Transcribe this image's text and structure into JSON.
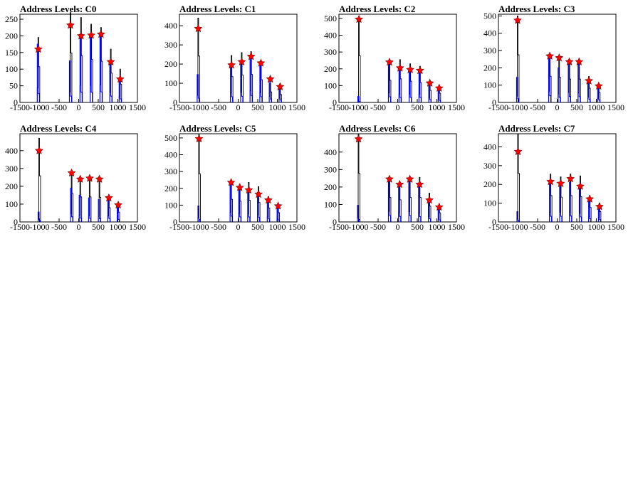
{
  "colors": {
    "background": "#ffffff",
    "frame": "#000000",
    "hist_black": "#000000",
    "hist_blue": "#0000ff",
    "marker": "#ff0000"
  },
  "chart_data": [
    {
      "type": "bar",
      "title": "Address Levels: C0",
      "xlim": [
        -1500,
        1500
      ],
      "ylim": [
        0,
        265
      ],
      "xticks": [
        -1500,
        -1000,
        -500,
        0,
        500,
        1000,
        1500
      ],
      "yticks": [
        0,
        50,
        100,
        150,
        200,
        250
      ],
      "peaks": [
        -1030,
        -210,
        60,
        320,
        570,
        820,
        1060
      ],
      "black": [
        195,
        270,
        255,
        235,
        225,
        160,
        100
      ],
      "blue": [
        175,
        125,
        205,
        205,
        210,
        125,
        70
      ],
      "markers": [
        {
          "x": -1030,
          "y": 160
        },
        {
          "x": -210,
          "y": 232
        },
        {
          "x": 60,
          "y": 200
        },
        {
          "x": 320,
          "y": 202
        },
        {
          "x": 570,
          "y": 205
        },
        {
          "x": 820,
          "y": 122
        },
        {
          "x": 1060,
          "y": 70
        }
      ]
    },
    {
      "type": "bar",
      "title": "Address Levels: C1",
      "xlim": [
        -1500,
        1500
      ],
      "ylim": [
        0,
        460
      ],
      "xticks": [
        -1500,
        -1000,
        -500,
        0,
        500,
        1000,
        1500
      ],
      "yticks": [
        0,
        100,
        200,
        300,
        400
      ],
      "peaks": [
        -1020,
        -170,
        90,
        330,
        580,
        820,
        1070
      ],
      "black": [
        440,
        245,
        260,
        265,
        215,
        100,
        75
      ],
      "blue": [
        145,
        200,
        210,
        240,
        200,
        120,
        85
      ],
      "markers": [
        {
          "x": -1020,
          "y": 385
        },
        {
          "x": -170,
          "y": 195
        },
        {
          "x": 90,
          "y": 212
        },
        {
          "x": 330,
          "y": 240
        },
        {
          "x": 580,
          "y": 205
        },
        {
          "x": 820,
          "y": 122
        },
        {
          "x": 1070,
          "y": 82
        }
      ]
    },
    {
      "type": "bar",
      "title": "Address Levels: C2",
      "xlim": [
        -1500,
        1500
      ],
      "ylim": [
        0,
        525
      ],
      "xticks": [
        -1500,
        -1000,
        -500,
        0,
        500,
        1000,
        1500
      ],
      "yticks": [
        0,
        100,
        200,
        300,
        400,
        500
      ],
      "peaks": [
        -990,
        -210,
        60,
        320,
        570,
        820,
        1060
      ],
      "black": [
        505,
        240,
        255,
        230,
        215,
        130,
        100
      ],
      "blue": [
        35,
        225,
        195,
        200,
        195,
        115,
        85
      ],
      "markers": [
        {
          "x": -990,
          "y": 495
        },
        {
          "x": -210,
          "y": 240
        },
        {
          "x": 60,
          "y": 205
        },
        {
          "x": 320,
          "y": 195
        },
        {
          "x": 570,
          "y": 190
        },
        {
          "x": 820,
          "y": 115
        },
        {
          "x": 1060,
          "y": 85
        }
      ]
    },
    {
      "type": "bar",
      "title": "Address Levels: C3",
      "xlim": [
        -1500,
        1500
      ],
      "ylim": [
        0,
        510
      ],
      "xticks": [
        -1500,
        -1000,
        -500,
        0,
        500,
        1000,
        1500
      ],
      "yticks": [
        0,
        100,
        200,
        300,
        400,
        500
      ],
      "peaks": [
        -1010,
        -190,
        50,
        310,
        560,
        810,
        1060
      ],
      "black": [
        500,
        275,
        265,
        245,
        245,
        150,
        105
      ],
      "blue": [
        145,
        260,
        200,
        230,
        220,
        125,
        95
      ],
      "markers": [
        {
          "x": -1010,
          "y": 475
        },
        {
          "x": -190,
          "y": 268
        },
        {
          "x": 50,
          "y": 258
        },
        {
          "x": 310,
          "y": 235
        },
        {
          "x": 560,
          "y": 235
        },
        {
          "x": 810,
          "y": 125
        },
        {
          "x": 1060,
          "y": 95
        }
      ]
    },
    {
      "type": "bar",
      "title": "Address Levels: C4",
      "xlim": [
        -1500,
        1500
      ],
      "ylim": [
        0,
        495
      ],
      "xticks": [
        -1500,
        -1000,
        -500,
        0,
        500,
        1000,
        1500
      ],
      "yticks": [
        0,
        100,
        200,
        300,
        400
      ],
      "peaks": [
        -1010,
        -180,
        40,
        280,
        530,
        770,
        1010
      ],
      "black": [
        470,
        290,
        255,
        255,
        250,
        145,
        100
      ],
      "blue": [
        55,
        190,
        150,
        135,
        125,
        135,
        95
      ],
      "markers": [
        {
          "x": -1010,
          "y": 400
        },
        {
          "x": -180,
          "y": 275
        },
        {
          "x": 40,
          "y": 240
        },
        {
          "x": 280,
          "y": 245
        },
        {
          "x": 530,
          "y": 240
        },
        {
          "x": 770,
          "y": 135
        },
        {
          "x": 1010,
          "y": 95
        }
      ]
    },
    {
      "type": "bar",
      "title": "Address Levels: C5",
      "xlim": [
        -1500,
        1500
      ],
      "ylim": [
        0,
        525
      ],
      "xticks": [
        -1500,
        -1000,
        -500,
        0,
        500,
        1000,
        1500
      ],
      "yticks": [
        0,
        100,
        200,
        300,
        400,
        500
      ],
      "peaks": [
        -1000,
        -180,
        40,
        270,
        520,
        770,
        1020
      ],
      "black": [
        520,
        245,
        225,
        235,
        210,
        150,
        100
      ],
      "blue": [
        95,
        230,
        200,
        195,
        175,
        120,
        80
      ],
      "markers": [
        {
          "x": -1000,
          "y": 495
        },
        {
          "x": -180,
          "y": 235
        },
        {
          "x": 40,
          "y": 205
        },
        {
          "x": 270,
          "y": 190
        },
        {
          "x": 520,
          "y": 165
        },
        {
          "x": 770,
          "y": 130
        },
        {
          "x": 1020,
          "y": 95
        }
      ]
    },
    {
      "type": "bar",
      "title": "Address Levels: C6",
      "xlim": [
        -1500,
        1500
      ],
      "ylim": [
        0,
        505
      ],
      "xticks": [
        -1500,
        -1000,
        -500,
        0,
        500,
        1000,
        1500
      ],
      "yticks": [
        0,
        100,
        200,
        300,
        400
      ],
      "peaks": [
        -1000,
        -210,
        50,
        310,
        560,
        810,
        1060
      ],
      "black": [
        505,
        255,
        230,
        255,
        255,
        165,
        95
      ],
      "blue": [
        95,
        240,
        210,
        235,
        200,
        120,
        80
      ],
      "markers": [
        {
          "x": -1000,
          "y": 475
        },
        {
          "x": -210,
          "y": 245
        },
        {
          "x": 50,
          "y": 215
        },
        {
          "x": 310,
          "y": 245
        },
        {
          "x": 560,
          "y": 215
        },
        {
          "x": 810,
          "y": 125
        },
        {
          "x": 1060,
          "y": 85
        }
      ]
    },
    {
      "type": "bar",
      "title": "Address Levels: C7",
      "xlim": [
        -1500,
        1500
      ],
      "ylim": [
        0,
        470
      ],
      "xticks": [
        -1500,
        -1000,
        -500,
        0,
        500,
        1000,
        1500
      ],
      "yticks": [
        0,
        100,
        200,
        300,
        400
      ],
      "peaks": [
        -1000,
        -170,
        90,
        340,
        590,
        830,
        1080
      ],
      "black": [
        470,
        255,
        240,
        255,
        245,
        140,
        100
      ],
      "blue": [
        55,
        200,
        200,
        210,
        180,
        115,
        85
      ],
      "markers": [
        {
          "x": -1000,
          "y": 375
        },
        {
          "x": -170,
          "y": 215
        },
        {
          "x": 90,
          "y": 205
        },
        {
          "x": 340,
          "y": 230
        },
        {
          "x": 590,
          "y": 190
        },
        {
          "x": 830,
          "y": 122
        },
        {
          "x": 1080,
          "y": 82
        }
      ]
    }
  ]
}
